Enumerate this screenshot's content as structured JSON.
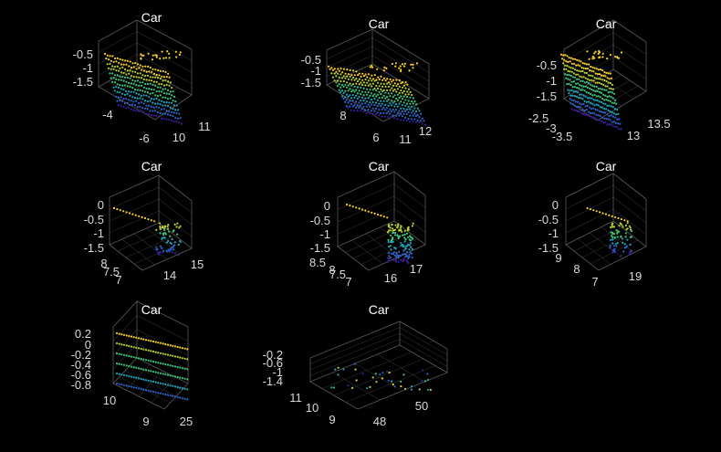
{
  "figure": {
    "background": "#000000",
    "colormap": [
      "#3b1f9a",
      "#2c64c8",
      "#1fa3b9",
      "#3dc37c",
      "#b7cf33",
      "#f7d02a"
    ]
  },
  "chart_data": [
    {
      "type": "scatter",
      "title": "Car",
      "view": "side-left",
      "xticks": [
        "11",
        "10"
      ],
      "yticks": [
        "-4",
        "-6"
      ],
      "zticks": [
        "-0.5",
        "-1",
        "-1.5"
      ]
    },
    {
      "type": "scatter",
      "title": "Car",
      "view": "side-long",
      "xticks": [
        "12",
        "11"
      ],
      "yticks": [
        "8",
        "6"
      ],
      "zticks": [
        "-0.5",
        "-1",
        "-1.5"
      ]
    },
    {
      "type": "scatter",
      "title": "Car",
      "view": "corner",
      "xticks": [
        "13.5",
        "13",
        "12.5"
      ],
      "yticks": [
        "-2.5",
        "-3",
        "-3.5"
      ],
      "zticks": [
        "-0.5",
        "-1",
        "-1.5"
      ]
    },
    {
      "type": "scatter",
      "title": "Car",
      "view": "sparse-l",
      "xticks": [
        "15",
        "14"
      ],
      "yticks": [
        "8",
        "7.5",
        "7"
      ],
      "zticks": [
        "0",
        "-0.5",
        "-1",
        "-1.5"
      ]
    },
    {
      "type": "scatter",
      "title": "Car",
      "view": "dense-l",
      "xticks": [
        "17",
        "16"
      ],
      "yticks": [
        "8.5",
        "8",
        "7.5",
        "7"
      ],
      "zticks": [
        "0",
        "-0.5",
        "-1",
        "-1.5"
      ]
    },
    {
      "type": "scatter",
      "title": "Car",
      "view": "sparse-r",
      "xticks": [
        "19"
      ],
      "yticks": [
        "9",
        "8",
        "7"
      ],
      "zticks": [
        "0",
        "-0.5",
        "-1",
        "-1.5"
      ]
    },
    {
      "type": "scatter",
      "title": "Car",
      "view": "stripes",
      "xticks": [
        "25"
      ],
      "yticks": [
        "10",
        "9"
      ],
      "zticks": [
        "0.2",
        "0",
        "-0.2",
        "-0.4",
        "-0.6",
        "-0.8"
      ]
    },
    {
      "type": "scatter",
      "title": "Car",
      "view": "far",
      "xticks": [
        "50",
        "48"
      ],
      "yticks": [
        "11",
        "10",
        "9"
      ],
      "zticks": [
        "-0.2",
        "-0.6",
        "-1",
        "-1.4"
      ]
    }
  ]
}
